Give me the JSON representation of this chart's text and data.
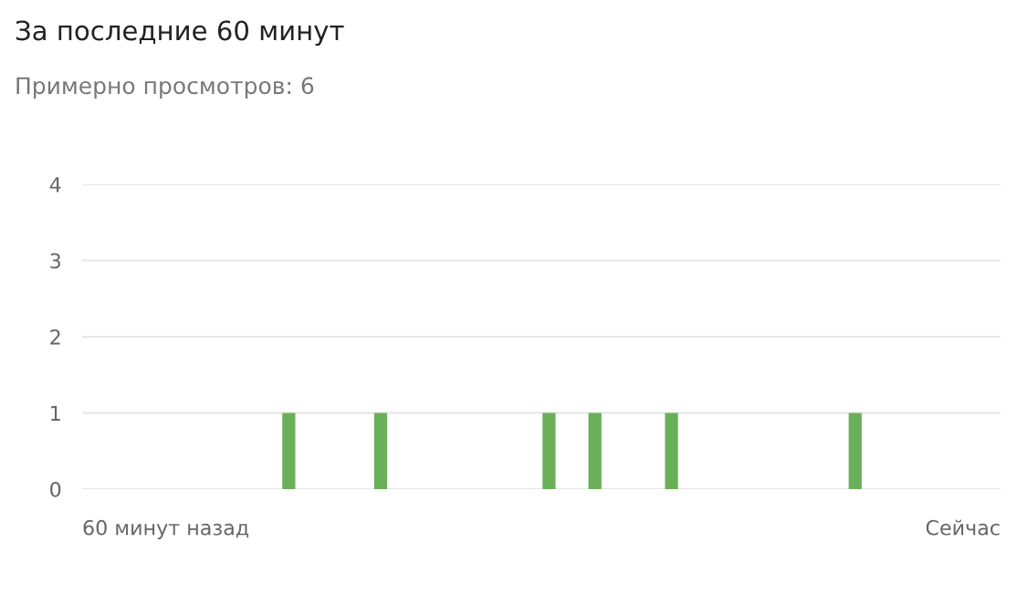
{
  "chart_data": {
    "type": "bar",
    "title": "За последние 60 минут",
    "subtitle": "Примерно просмотров: 6",
    "annotations": [
      "60 минут назад",
      "Сейчас"
    ],
    "categories": [
      null,
      null,
      null,
      null,
      null,
      null,
      null,
      null,
      null,
      null,
      null,
      null,
      null,
      null,
      null,
      null,
      null,
      null,
      null,
      null,
      null,
      null,
      null,
      null,
      null,
      null,
      null,
      null,
      null,
      null,
      null,
      null,
      null,
      null,
      null,
      null,
      null,
      null,
      null,
      null,
      null,
      null,
      null,
      null,
      null,
      null,
      null,
      null,
      null,
      null,
      null,
      null,
      null,
      null,
      null,
      null,
      null,
      null,
      null,
      null
    ],
    "values": [
      0,
      0,
      0,
      0,
      0,
      0,
      0,
      0,
      0,
      0,
      0,
      0,
      0,
      1,
      0,
      0,
      0,
      0,
      0,
      1,
      0,
      0,
      0,
      0,
      0,
      0,
      0,
      0,
      0,
      0,
      1,
      0,
      0,
      1,
      0,
      0,
      0,
      0,
      1,
      0,
      0,
      0,
      0,
      0,
      0,
      0,
      0,
      0,
      0,
      0,
      1,
      0,
      0,
      0,
      0,
      0,
      0,
      0,
      0,
      0
    ],
    "color": "#6aaf5a",
    "ylim": [
      0,
      4
    ],
    "yticks": [
      0,
      1,
      2,
      3,
      4
    ],
    "grid": "y",
    "legend": false
  }
}
